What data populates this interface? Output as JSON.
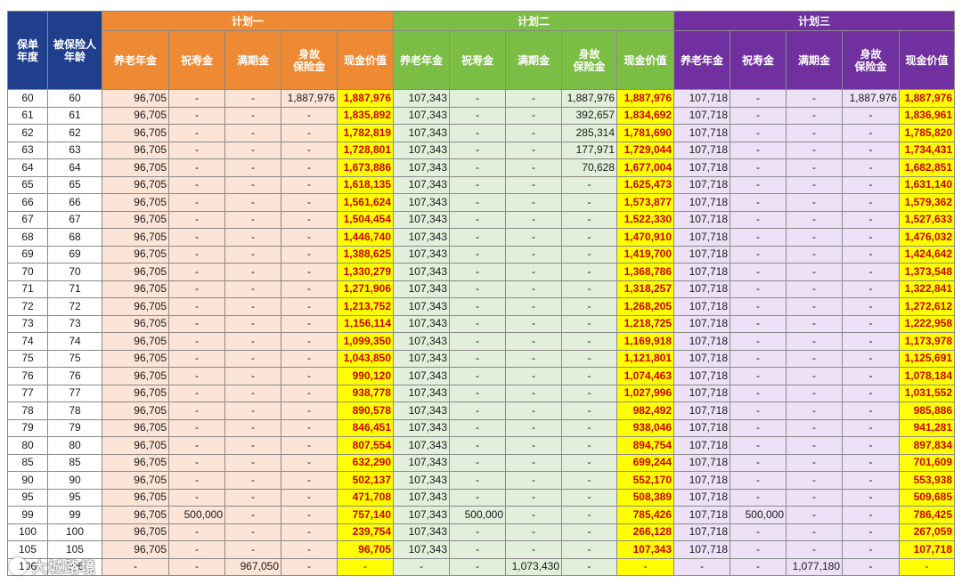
{
  "headers": {
    "policy_year": "保单\n年度",
    "insured_age": "被保险人\n年龄",
    "plans": [
      "计划一",
      "计划二",
      "计划三"
    ],
    "sub": [
      "养老年金",
      "祝寿金",
      "满期金",
      "身故\n保险金",
      "现金价值"
    ]
  },
  "rows": [
    [
      "60",
      "60",
      "96,705",
      "-",
      "-",
      "1,887,976",
      "1,887,976",
      "107,343",
      "-",
      "-",
      "1,887,976",
      "1,887,976",
      "107,718",
      "-",
      "-",
      "1,887,976",
      "1,887,976"
    ],
    [
      "61",
      "61",
      "96,705",
      "-",
      "-",
      "-",
      "1,835,892",
      "107,343",
      "-",
      "-",
      "392,657",
      "1,834,692",
      "107,718",
      "-",
      "-",
      "-",
      "1,836,961"
    ],
    [
      "62",
      "62",
      "96,705",
      "-",
      "-",
      "-",
      "1,782,819",
      "107,343",
      "-",
      "-",
      "285,314",
      "1,781,690",
      "107,718",
      "-",
      "-",
      "-",
      "1,785,820"
    ],
    [
      "63",
      "63",
      "96,705",
      "-",
      "-",
      "-",
      "1,728,801",
      "107,343",
      "-",
      "-",
      "177,971",
      "1,729,044",
      "107,718",
      "-",
      "-",
      "-",
      "1,734,431"
    ],
    [
      "64",
      "64",
      "96,705",
      "-",
      "-",
      "-",
      "1,673,886",
      "107,343",
      "-",
      "-",
      "70,628",
      "1,677,004",
      "107,718",
      "-",
      "-",
      "-",
      "1,682,851"
    ],
    [
      "65",
      "65",
      "96,705",
      "-",
      "-",
      "-",
      "1,618,135",
      "107,343",
      "-",
      "-",
      "-",
      "1,625,473",
      "107,718",
      "-",
      "-",
      "-",
      "1,631,140"
    ],
    [
      "66",
      "66",
      "96,705",
      "-",
      "-",
      "-",
      "1,561,624",
      "107,343",
      "-",
      "-",
      "-",
      "1,573,877",
      "107,718",
      "-",
      "-",
      "-",
      "1,579,362"
    ],
    [
      "67",
      "67",
      "96,705",
      "-",
      "-",
      "-",
      "1,504,454",
      "107,343",
      "-",
      "-",
      "-",
      "1,522,330",
      "107,718",
      "-",
      "-",
      "-",
      "1,527,633"
    ],
    [
      "68",
      "68",
      "96,705",
      "-",
      "-",
      "-",
      "1,446,740",
      "107,343",
      "-",
      "-",
      "-",
      "1,470,910",
      "107,718",
      "-",
      "-",
      "-",
      "1,476,032"
    ],
    [
      "69",
      "69",
      "96,705",
      "-",
      "-",
      "-",
      "1,388,625",
      "107,343",
      "-",
      "-",
      "-",
      "1,419,700",
      "107,718",
      "-",
      "-",
      "-",
      "1,424,642"
    ],
    [
      "70",
      "70",
      "96,705",
      "-",
      "-",
      "-",
      "1,330,279",
      "107,343",
      "-",
      "-",
      "-",
      "1,368,786",
      "107,718",
      "-",
      "-",
      "-",
      "1,373,548"
    ],
    [
      "71",
      "71",
      "96,705",
      "-",
      "-",
      "-",
      "1,271,906",
      "107,343",
      "-",
      "-",
      "-",
      "1,318,257",
      "107,718",
      "-",
      "-",
      "-",
      "1,322,841"
    ],
    [
      "72",
      "72",
      "96,705",
      "-",
      "-",
      "-",
      "1,213,752",
      "107,343",
      "-",
      "-",
      "-",
      "1,268,205",
      "107,718",
      "-",
      "-",
      "-",
      "1,272,612"
    ],
    [
      "73",
      "73",
      "96,705",
      "-",
      "-",
      "-",
      "1,156,114",
      "107,343",
      "-",
      "-",
      "-",
      "1,218,725",
      "107,718",
      "-",
      "-",
      "-",
      "1,222,958"
    ],
    [
      "74",
      "74",
      "96,705",
      "-",
      "-",
      "-",
      "1,099,350",
      "107,343",
      "-",
      "-",
      "-",
      "1,169,918",
      "107,718",
      "-",
      "-",
      "-",
      "1,173,978"
    ],
    [
      "75",
      "75",
      "96,705",
      "-",
      "-",
      "-",
      "1,043,850",
      "107,343",
      "-",
      "-",
      "-",
      "1,121,801",
      "107,718",
      "-",
      "-",
      "-",
      "1,125,691"
    ],
    [
      "76",
      "76",
      "96,705",
      "-",
      "-",
      "-",
      "990,120",
      "107,343",
      "-",
      "-",
      "-",
      "1,074,463",
      "107,718",
      "-",
      "-",
      "-",
      "1,078,184"
    ],
    [
      "77",
      "77",
      "96,705",
      "-",
      "-",
      "-",
      "938,778",
      "107,343",
      "-",
      "-",
      "-",
      "1,027,996",
      "107,718",
      "-",
      "-",
      "-",
      "1,031,552"
    ],
    [
      "78",
      "78",
      "96,705",
      "-",
      "-",
      "-",
      "890,578",
      "107,343",
      "-",
      "-",
      "-",
      "982,492",
      "107,718",
      "-",
      "-",
      "-",
      "985,886"
    ],
    [
      "79",
      "79",
      "96,705",
      "-",
      "-",
      "-",
      "846,451",
      "107,343",
      "-",
      "-",
      "-",
      "938,046",
      "107,718",
      "-",
      "-",
      "-",
      "941,281"
    ],
    [
      "80",
      "80",
      "96,705",
      "-",
      "-",
      "-",
      "807,554",
      "107,343",
      "-",
      "-",
      "-",
      "894,754",
      "107,718",
      "-",
      "-",
      "-",
      "897,834"
    ],
    [
      "85",
      "85",
      "96,705",
      "-",
      "-",
      "-",
      "632,290",
      "107,343",
      "-",
      "-",
      "-",
      "699,244",
      "107,718",
      "-",
      "-",
      "-",
      "701,609"
    ],
    [
      "90",
      "90",
      "96,705",
      "-",
      "-",
      "-",
      "502,137",
      "107,343",
      "-",
      "-",
      "-",
      "552,170",
      "107,718",
      "-",
      "-",
      "-",
      "553,938"
    ],
    [
      "95",
      "95",
      "96,705",
      "-",
      "-",
      "-",
      "471,708",
      "107,343",
      "-",
      "-",
      "-",
      "508,389",
      "107,718",
      "-",
      "-",
      "-",
      "509,685"
    ],
    [
      "99",
      "99",
      "96,705",
      "500,000",
      "-",
      "-",
      "757,140",
      "107,343",
      "500,000",
      "-",
      "-",
      "785,426",
      "107,718",
      "500,000",
      "-",
      "-",
      "786,425"
    ],
    [
      "100",
      "100",
      "96,705",
      "-",
      "-",
      "-",
      "239,754",
      "107,343",
      "-",
      "-",
      "-",
      "266,128",
      "107,718",
      "-",
      "-",
      "-",
      "267,059"
    ],
    [
      "105",
      "105",
      "96,705",
      "-",
      "-",
      "-",
      "96,705",
      "107,343",
      "-",
      "-",
      "-",
      "107,343",
      "107,718",
      "-",
      "-",
      "-",
      "107,718"
    ],
    [
      "106",
      "106",
      "-",
      "-",
      "967,050",
      "-",
      "-",
      "-",
      "-",
      "1,073,430",
      "-",
      "-",
      "-",
      "-",
      "1,077,180",
      "-",
      "-"
    ]
  ],
  "watermark": "大城路境",
  "colors": {
    "key_header": "#1f3f8c",
    "plan1": "#ee8a33",
    "plan2": "#7cbd45",
    "plan3": "#7030a0",
    "plan1_fill": "#fce4d6",
    "plan2_fill": "#e2efda",
    "plan3_fill": "#ece1f6",
    "cash_value_fill": "#ffff00",
    "cash_value_text": "#cc0000"
  }
}
